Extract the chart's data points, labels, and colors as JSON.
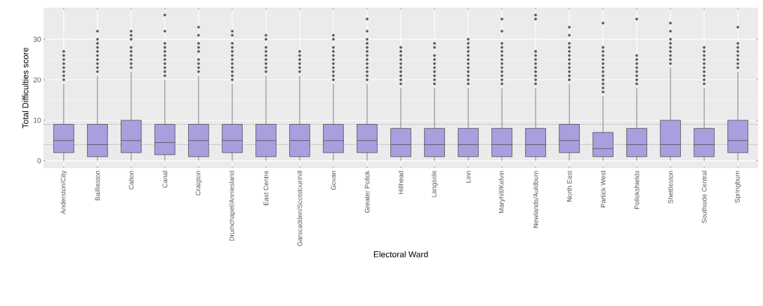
{
  "chart_data": {
    "type": "box",
    "xlabel": "Electoral Ward",
    "ylabel": "Total Difficulties score",
    "categories": [
      "Anderston/City",
      "Baillieston",
      "Calton",
      "Canal",
      "Craigton",
      "Drumchapel/Anniesland",
      "East Centre",
      "Garscadden/Scotstounhill",
      "Govan",
      "Greater Pollok",
      "Hillhead",
      "Langside",
      "Linn",
      "Maryhill/Kelvin",
      "Newlands/Auldburn",
      "North East",
      "Partick West",
      "Pollokshields",
      "Shettleston",
      "Southside Central",
      "Springburn"
    ],
    "color": "#a99fdf",
    "marker": "circle",
    "grid": true,
    "ylim": [
      -1.8,
      37.8
    ],
    "yticks": [
      0,
      10,
      20,
      30
    ],
    "ref_lines": [
      {
        "axis": "y",
        "value": 9,
        "line_style": "dotted",
        "color": "#000000"
      },
      {
        "axis": "y",
        "value": 4,
        "line_style": "dotted",
        "color": "#000000"
      }
    ],
    "boxes": [
      {
        "low": 0,
        "q1": 2,
        "median": 5,
        "q3": 9,
        "high": 19,
        "outliers": [
          20,
          21,
          22,
          23,
          24,
          25,
          26,
          27
        ]
      },
      {
        "low": 0,
        "q1": 1,
        "median": 4,
        "q3": 9,
        "high": 21,
        "outliers": [
          22,
          23,
          24,
          25,
          26,
          27,
          28,
          29,
          30,
          32
        ]
      },
      {
        "low": 0,
        "q1": 2,
        "median": 5,
        "q3": 10,
        "high": 22,
        "outliers": [
          23,
          24,
          25,
          26,
          27,
          28,
          30,
          31,
          32
        ]
      },
      {
        "low": 0,
        "q1": 1.5,
        "median": 4.5,
        "q3": 9,
        "high": 20,
        "outliers": [
          21,
          22,
          23,
          24,
          25,
          26,
          27,
          28,
          29,
          32,
          36
        ]
      },
      {
        "low": 0,
        "q1": 1,
        "median": 5,
        "q3": 9,
        "high": 21,
        "outliers": [
          22,
          23,
          24,
          25,
          27,
          28,
          29,
          31,
          33
        ]
      },
      {
        "low": 0,
        "q1": 2,
        "median": 5,
        "q3": 9,
        "high": 19,
        "outliers": [
          20,
          21,
          22,
          23,
          24,
          25,
          26,
          27,
          28,
          29,
          31,
          32
        ]
      },
      {
        "low": 0,
        "q1": 1,
        "median": 5,
        "q3": 9,
        "high": 21,
        "outliers": [
          22,
          23,
          24,
          25,
          26,
          27,
          28,
          30,
          31
        ]
      },
      {
        "low": 0,
        "q1": 1,
        "median": 5,
        "q3": 9,
        "high": 21,
        "outliers": [
          22,
          23,
          24,
          25,
          26,
          27
        ]
      },
      {
        "low": 0,
        "q1": 2,
        "median": 5,
        "q3": 9,
        "high": 19,
        "outliers": [
          20,
          21,
          22,
          23,
          24,
          25,
          26,
          27,
          28,
          30,
          31
        ]
      },
      {
        "low": 0,
        "q1": 2,
        "median": 5,
        "q3": 9,
        "high": 19,
        "outliers": [
          20,
          21,
          22,
          23,
          24,
          25,
          26,
          27,
          28,
          29,
          30,
          32,
          35
        ]
      },
      {
        "low": 0,
        "q1": 1,
        "median": 4,
        "q3": 8,
        "high": 18,
        "outliers": [
          19,
          20,
          21,
          22,
          23,
          24,
          25,
          26,
          27,
          28
        ]
      },
      {
        "low": 0,
        "q1": 1,
        "median": 4,
        "q3": 8,
        "high": 18,
        "outliers": [
          19,
          20,
          21,
          22,
          23,
          24,
          25,
          26,
          28,
          29
        ]
      },
      {
        "low": 0,
        "q1": 1,
        "median": 4,
        "q3": 8,
        "high": 18,
        "outliers": [
          19,
          20,
          21,
          22,
          23,
          24,
          25,
          26,
          27,
          28,
          29,
          30
        ]
      },
      {
        "low": 0,
        "q1": 1,
        "median": 4,
        "q3": 8,
        "high": 18,
        "outliers": [
          19,
          20,
          21,
          22,
          23,
          24,
          25,
          26,
          27,
          28,
          29,
          32,
          35
        ]
      },
      {
        "low": 0,
        "q1": 1,
        "median": 4,
        "q3": 8,
        "high": 18,
        "outliers": [
          19,
          20,
          21,
          22,
          23,
          24,
          25,
          26,
          27,
          35,
          36
        ]
      },
      {
        "low": 0,
        "q1": 2,
        "median": 5,
        "q3": 9,
        "high": 19,
        "outliers": [
          20,
          21,
          22,
          23,
          24,
          25,
          26,
          27,
          28,
          29,
          31,
          33
        ]
      },
      {
        "low": 0,
        "q1": 1,
        "median": 3,
        "q3": 7,
        "high": 16,
        "outliers": [
          17,
          18,
          19,
          20,
          21,
          22,
          23,
          24,
          25,
          26,
          27,
          28,
          34
        ]
      },
      {
        "low": 0,
        "q1": 1,
        "median": 4,
        "q3": 8,
        "high": 18,
        "outliers": [
          19,
          20,
          21,
          22,
          23,
          24,
          25,
          26,
          35
        ]
      },
      {
        "low": 0,
        "q1": 1,
        "median": 4,
        "q3": 10,
        "high": 23,
        "outliers": [
          24,
          25,
          26,
          27,
          28,
          29,
          30,
          32,
          34
        ]
      },
      {
        "low": 0,
        "q1": 1,
        "median": 4,
        "q3": 8,
        "high": 18,
        "outliers": [
          19,
          20,
          21,
          22,
          23,
          24,
          25,
          26,
          27,
          28
        ]
      },
      {
        "low": 0,
        "q1": 2,
        "median": 5,
        "q3": 10,
        "high": 22,
        "outliers": [
          23,
          24,
          25,
          26,
          27,
          28,
          29,
          33
        ]
      }
    ]
  }
}
